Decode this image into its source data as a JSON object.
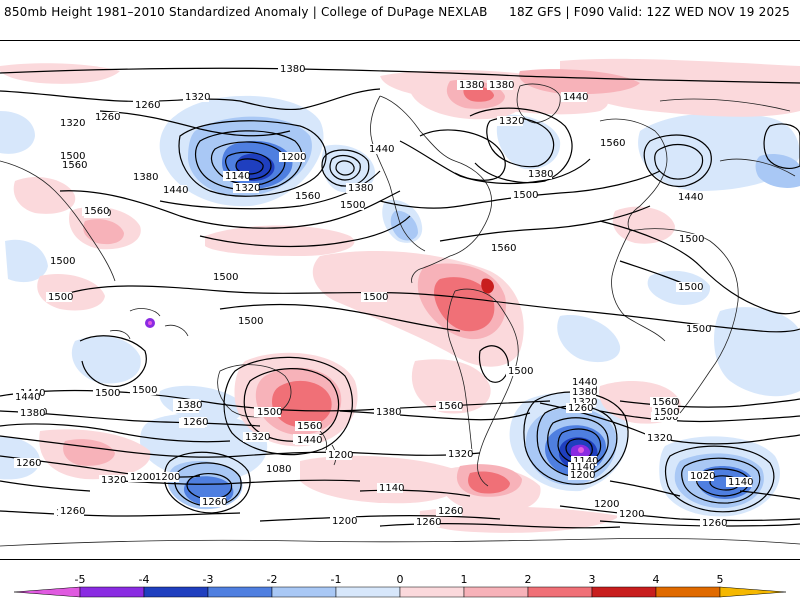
{
  "header": {
    "title": "850mb Height 1981–2010 Standardized Anomaly | College of DuPage NEXLAB",
    "run_info": "18Z GFS | F090 Valid: 12Z WED NOV 19 2025"
  },
  "colors": {
    "neg5": "#e05ae0",
    "neg4": "#8a2be2",
    "neg3": "#1f3fbf",
    "neg2": "#4f7fe0",
    "neg1": "#a9c8f5",
    "neg05": "#d7e7fb",
    "zero": "#ffffff",
    "pos05": "#fbd9dc",
    "pos1": "#f7b2b9",
    "pos2": "#f07077",
    "pos3": "#c81e1e",
    "pos4": "#e06a00",
    "pos5": "#f5b800",
    "contour": "#000000",
    "coast": "#222222"
  },
  "contour_labels": [
    "1380",
    "1320",
    "1260",
    "1260",
    "1320",
    "1380",
    "1440",
    "1500",
    "1560",
    "1500",
    "1560",
    "1500",
    "1500",
    "1440",
    "1380",
    "1260",
    "1200",
    "1140",
    "1320",
    "1380",
    "1440",
    "1560",
    "1500",
    "1380",
    "1560",
    "1500",
    "1500",
    "1440",
    "1380",
    "1380",
    "1320",
    "1260",
    "1260",
    "1440",
    "1500",
    "1560",
    "1500",
    "1500",
    "1500",
    "1500",
    "1500",
    "1500",
    "1440",
    "1380",
    "1440",
    "1500",
    "1500",
    "1500",
    "1440",
    "1380",
    "1320",
    "1440",
    "1560",
    "1500",
    "1560",
    "1440",
    "1380",
    "1320",
    "1260",
    "1140",
    "1500",
    "1560",
    "1380",
    "1320",
    "1260",
    "1200",
    "1080",
    "1200",
    "1320",
    "1260",
    "1200",
    "1140",
    "1260",
    "1200",
    "1200",
    "1260",
    "1320",
    "1260",
    "1140",
    "1200",
    "1200",
    "1020",
    "1140",
    "1260",
    "1440",
    "1380",
    "1500",
    "1500",
    "1560",
    "1320"
  ],
  "colorbar": {
    "ticks": [
      "-5",
      "-4",
      "-3",
      "-2",
      "-1",
      "0",
      "1",
      "2",
      "3",
      "4",
      "5"
    ]
  }
}
